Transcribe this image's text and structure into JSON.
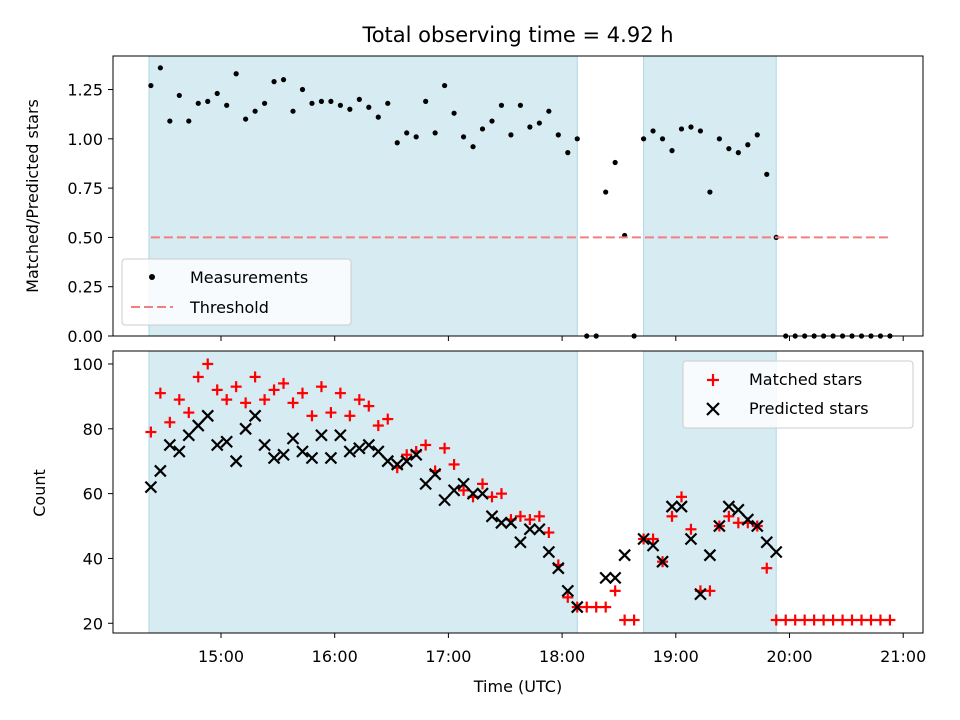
{
  "chart_data": {
    "type": "scatter",
    "title": "Total observing time = 4.92 h",
    "xlabel": "Time (UTC)",
    "x_ticks": [
      "15:00",
      "16:00",
      "17:00",
      "18:00",
      "19:00",
      "20:00",
      "21:00"
    ],
    "shaded_intervals": [
      [
        "14:22",
        "18:08"
      ],
      [
        "18:43",
        "19:53"
      ]
    ],
    "shade_color": "#add8e6",
    "panels": [
      {
        "id": "ratio",
        "ylabel": "Matched/Predicted stars",
        "ylim": [
          0,
          1.42
        ],
        "y_ticks": [
          "0.00",
          "0.25",
          "0.50",
          "0.75",
          "1.00",
          "1.25"
        ],
        "legend_placement": "lower-left",
        "series": [
          {
            "name": "Measurements",
            "kind": "points",
            "color": "#000000",
            "points": [
              [
                "14:23",
                1.27
              ],
              [
                "14:28",
                1.36
              ],
              [
                "14:33",
                1.09
              ],
              [
                "14:38",
                1.22
              ],
              [
                "14:43",
                1.09
              ],
              [
                "14:48",
                1.18
              ],
              [
                "14:53",
                1.19
              ],
              [
                "14:58",
                1.23
              ],
              [
                "15:03",
                1.17
              ],
              [
                "15:08",
                1.33
              ],
              [
                "15:13",
                1.1
              ],
              [
                "15:18",
                1.14
              ],
              [
                "15:23",
                1.18
              ],
              [
                "15:28",
                1.29
              ],
              [
                "15:33",
                1.3
              ],
              [
                "15:38",
                1.14
              ],
              [
                "15:43",
                1.25
              ],
              [
                "15:48",
                1.18
              ],
              [
                "15:53",
                1.19
              ],
              [
                "15:58",
                1.19
              ],
              [
                "16:03",
                1.17
              ],
              [
                "16:08",
                1.15
              ],
              [
                "16:13",
                1.2
              ],
              [
                "16:18",
                1.16
              ],
              [
                "16:23",
                1.11
              ],
              [
                "16:28",
                1.18
              ],
              [
                "16:33",
                0.98
              ],
              [
                "16:38",
                1.03
              ],
              [
                "16:43",
                1.01
              ],
              [
                "16:48",
                1.19
              ],
              [
                "16:53",
                1.03
              ],
              [
                "16:58",
                1.27
              ],
              [
                "17:03",
                1.13
              ],
              [
                "17:08",
                1.01
              ],
              [
                "17:13",
                0.96
              ],
              [
                "17:18",
                1.05
              ],
              [
                "17:23",
                1.09
              ],
              [
                "17:28",
                1.17
              ],
              [
                "17:33",
                1.02
              ],
              [
                "17:38",
                1.17
              ],
              [
                "17:43",
                1.06
              ],
              [
                "17:48",
                1.08
              ],
              [
                "17:53",
                1.14
              ],
              [
                "17:58",
                1.02
              ],
              [
                "18:03",
                0.93
              ],
              [
                "18:08",
                1.0
              ],
              [
                "18:13",
                0.0
              ],
              [
                "18:18",
                0.0
              ],
              [
                "18:23",
                0.73
              ],
              [
                "18:28",
                0.88
              ],
              [
                "18:33",
                0.51
              ],
              [
                "18:38",
                0.0
              ],
              [
                "18:43",
                1.0
              ],
              [
                "18:48",
                1.04
              ],
              [
                "18:53",
                1.0
              ],
              [
                "18:58",
                0.94
              ],
              [
                "19:03",
                1.05
              ],
              [
                "19:08",
                1.06
              ],
              [
                "19:13",
                1.04
              ],
              [
                "19:18",
                0.73
              ],
              [
                "19:23",
                1.0
              ],
              [
                "19:28",
                0.95
              ],
              [
                "19:33",
                0.93
              ],
              [
                "19:38",
                0.97
              ],
              [
                "19:43",
                1.02
              ],
              [
                "19:48",
                0.82
              ],
              [
                "19:53",
                0.5
              ],
              [
                "19:58",
                0.0
              ],
              [
                "20:03",
                0.0
              ],
              [
                "20:08",
                0.0
              ],
              [
                "20:13",
                0.0
              ],
              [
                "20:18",
                0.0
              ],
              [
                "20:23",
                0.0
              ],
              [
                "20:28",
                0.0
              ],
              [
                "20:33",
                0.0
              ],
              [
                "20:38",
                0.0
              ],
              [
                "20:43",
                0.0
              ],
              [
                "20:48",
                0.0
              ],
              [
                "20:53",
                0.0
              ]
            ]
          },
          {
            "name": "Threshold",
            "kind": "dashed-line",
            "color": "#f08080",
            "points": [
              [
                "14:23",
                0.5
              ],
              [
                "20:53",
                0.5
              ]
            ]
          }
        ]
      },
      {
        "id": "count",
        "ylabel": "Count",
        "ylim": [
          17,
          104
        ],
        "y_ticks": [
          "20",
          "40",
          "60",
          "80",
          "100"
        ],
        "legend_placement": "upper-right",
        "series": [
          {
            "name": "Matched stars",
            "kind": "plus",
            "color": "#ff0000",
            "points": [
              [
                "14:23",
                79
              ],
              [
                "14:28",
                91
              ],
              [
                "14:33",
                82
              ],
              [
                "14:38",
                89
              ],
              [
                "14:43",
                85
              ],
              [
                "14:48",
                96
              ],
              [
                "14:53",
                100
              ],
              [
                "14:58",
                92
              ],
              [
                "15:03",
                89
              ],
              [
                "15:08",
                93
              ],
              [
                "15:13",
                88
              ],
              [
                "15:18",
                96
              ],
              [
                "15:23",
                89
              ],
              [
                "15:28",
                92
              ],
              [
                "15:33",
                94
              ],
              [
                "15:38",
                88
              ],
              [
                "15:43",
                91
              ],
              [
                "15:48",
                84
              ],
              [
                "15:53",
                93
              ],
              [
                "15:58",
                85
              ],
              [
                "16:03",
                91
              ],
              [
                "16:08",
                84
              ],
              [
                "16:13",
                89
              ],
              [
                "16:18",
                87
              ],
              [
                "16:23",
                81
              ],
              [
                "16:28",
                83
              ],
              [
                "16:33",
                68
              ],
              [
                "16:38",
                72
              ],
              [
                "16:43",
                73
              ],
              [
                "16:48",
                75
              ],
              [
                "16:53",
                67
              ],
              [
                "16:58",
                74
              ],
              [
                "17:03",
                69
              ],
              [
                "17:08",
                61
              ],
              [
                "17:13",
                59
              ],
              [
                "17:18",
                63
              ],
              [
                "17:23",
                59
              ],
              [
                "17:28",
                60
              ],
              [
                "17:33",
                52
              ],
              [
                "17:38",
                53
              ],
              [
                "17:43",
                52
              ],
              [
                "17:48",
                53
              ],
              [
                "17:53",
                48
              ],
              [
                "17:58",
                38
              ],
              [
                "18:03",
                28
              ],
              [
                "18:08",
                25
              ],
              [
                "18:13",
                25
              ],
              [
                "18:18",
                25
              ],
              [
                "18:23",
                25
              ],
              [
                "18:28",
                30
              ],
              [
                "18:33",
                21
              ],
              [
                "18:38",
                21
              ],
              [
                "18:43",
                46
              ],
              [
                "18:48",
                46
              ],
              [
                "18:53",
                39
              ],
              [
                "18:58",
                53
              ],
              [
                "19:03",
                59
              ],
              [
                "19:08",
                49
              ],
              [
                "19:13",
                30
              ],
              [
                "19:18",
                30
              ],
              [
                "19:23",
                50
              ],
              [
                "19:28",
                53
              ],
              [
                "19:33",
                51
              ],
              [
                "19:38",
                51
              ],
              [
                "19:43",
                50
              ],
              [
                "19:48",
                37
              ],
              [
                "19:53",
                21
              ],
              [
                "19:58",
                21
              ],
              [
                "20:03",
                21
              ],
              [
                "20:08",
                21
              ],
              [
                "20:13",
                21
              ],
              [
                "20:18",
                21
              ],
              [
                "20:23",
                21
              ],
              [
                "20:28",
                21
              ],
              [
                "20:33",
                21
              ],
              [
                "20:38",
                21
              ],
              [
                "20:43",
                21
              ],
              [
                "20:48",
                21
              ],
              [
                "20:53",
                21
              ]
            ]
          },
          {
            "name": "Predicted stars",
            "kind": "cross",
            "color": "#000000",
            "points": [
              [
                "14:23",
                62
              ],
              [
                "14:28",
                67
              ],
              [
                "14:33",
                75
              ],
              [
                "14:38",
                73
              ],
              [
                "14:43",
                78
              ],
              [
                "14:48",
                81
              ],
              [
                "14:53",
                84
              ],
              [
                "14:58",
                75
              ],
              [
                "15:03",
                76
              ],
              [
                "15:08",
                70
              ],
              [
                "15:13",
                80
              ],
              [
                "15:18",
                84
              ],
              [
                "15:23",
                75
              ],
              [
                "15:28",
                71
              ],
              [
                "15:33",
                72
              ],
              [
                "15:38",
                77
              ],
              [
                "15:43",
                73
              ],
              [
                "15:48",
                71
              ],
              [
                "15:53",
                78
              ],
              [
                "15:58",
                71
              ],
              [
                "16:03",
                78
              ],
              [
                "16:08",
                73
              ],
              [
                "16:13",
                74
              ],
              [
                "16:18",
                75
              ],
              [
                "16:23",
                73
              ],
              [
                "16:28",
                70
              ],
              [
                "16:33",
                69
              ],
              [
                "16:38",
                70
              ],
              [
                "16:43",
                72
              ],
              [
                "16:48",
                63
              ],
              [
                "16:53",
                66
              ],
              [
                "16:58",
                58
              ],
              [
                "17:03",
                61
              ],
              [
                "17:08",
                63
              ],
              [
                "17:13",
                60
              ],
              [
                "17:18",
                60
              ],
              [
                "17:23",
                53
              ],
              [
                "17:28",
                51
              ],
              [
                "17:33",
                51
              ],
              [
                "17:38",
                45
              ],
              [
                "17:43",
                49
              ],
              [
                "17:48",
                49
              ],
              [
                "17:53",
                42
              ],
              [
                "17:58",
                37
              ],
              [
                "18:03",
                30
              ],
              [
                "18:08",
                25
              ],
              [
                "18:23",
                34
              ],
              [
                "18:28",
                34
              ],
              [
                "18:33",
                41
              ],
              [
                "18:43",
                46
              ],
              [
                "18:48",
                44
              ],
              [
                "18:53",
                39
              ],
              [
                "18:58",
                56
              ],
              [
                "19:03",
                56
              ],
              [
                "19:08",
                46
              ],
              [
                "19:13",
                29
              ],
              [
                "19:18",
                41
              ],
              [
                "19:23",
                50
              ],
              [
                "19:28",
                56
              ],
              [
                "19:33",
                55
              ],
              [
                "19:38",
                52
              ],
              [
                "19:43",
                50
              ],
              [
                "19:48",
                45
              ],
              [
                "19:53",
                42
              ]
            ]
          }
        ]
      }
    ]
  }
}
